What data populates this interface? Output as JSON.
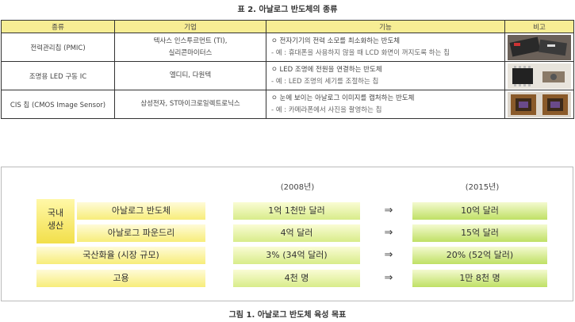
{
  "table": {
    "title": "표 2. 아날로그 반도체의 종류",
    "headers": [
      "종류",
      "기업",
      "기능",
      "비고"
    ],
    "rows": [
      {
        "type": "전력관리칩 (PMIC)",
        "companies": [
          "텍사스 인스투르먼트 (TI),",
          "실리콘마이터스"
        ],
        "function": "ㅇ 전자기기의 전력 소모를 최소화하는 반도체",
        "example": "- 예 : 휴대폰을 사용하지 않을 때 LCD 화면이 꺼지도록 하는 칩",
        "image": "pmic-chip-photo"
      },
      {
        "type": "조명용 LED 구동 IC",
        "companies": [
          "엘디티, 다원텍"
        ],
        "function": "ㅇ LED 조명에 전원을 연결하는 반도체",
        "example": "- 예 : LED 조명의 세기를 조절하는 칩",
        "image": "led-driver-chip-photo"
      },
      {
        "type": "CIS 칩 (CMOS Image Sensor)",
        "companies": [
          "삼성전자, ST마이크로일렉트로닉스"
        ],
        "function": "ㅇ 눈에 보이는 아날로그 이미지를 캡처하는 반도체",
        "example": "- 예 : 카메라폰에서 사진을 촬영하는 칩",
        "image": "cmos-sensor-photo"
      }
    ]
  },
  "figure": {
    "title": "그림 1. 아날로그 반도체 육성 목표",
    "year_2008": "(2008년)",
    "year_2015": "(2015년)",
    "domestic_label": [
      "국내",
      "생산"
    ],
    "arrow": "⇒",
    "rows": [
      {
        "label": "아날로그 반도체",
        "v2008": "1억 1천만 달러",
        "v2015": "10억 달러"
      },
      {
        "label": "아날로그 파운드리",
        "v2008": "4억 달러",
        "v2015": "15억 달러"
      },
      {
        "label": "국산화율 (시장 규모)",
        "v2008": "3% (34억 달러)",
        "v2015": "20% (52억 달러)"
      },
      {
        "label": "고용",
        "v2008": "4천 명",
        "v2015": "1만 8천 명"
      }
    ]
  }
}
